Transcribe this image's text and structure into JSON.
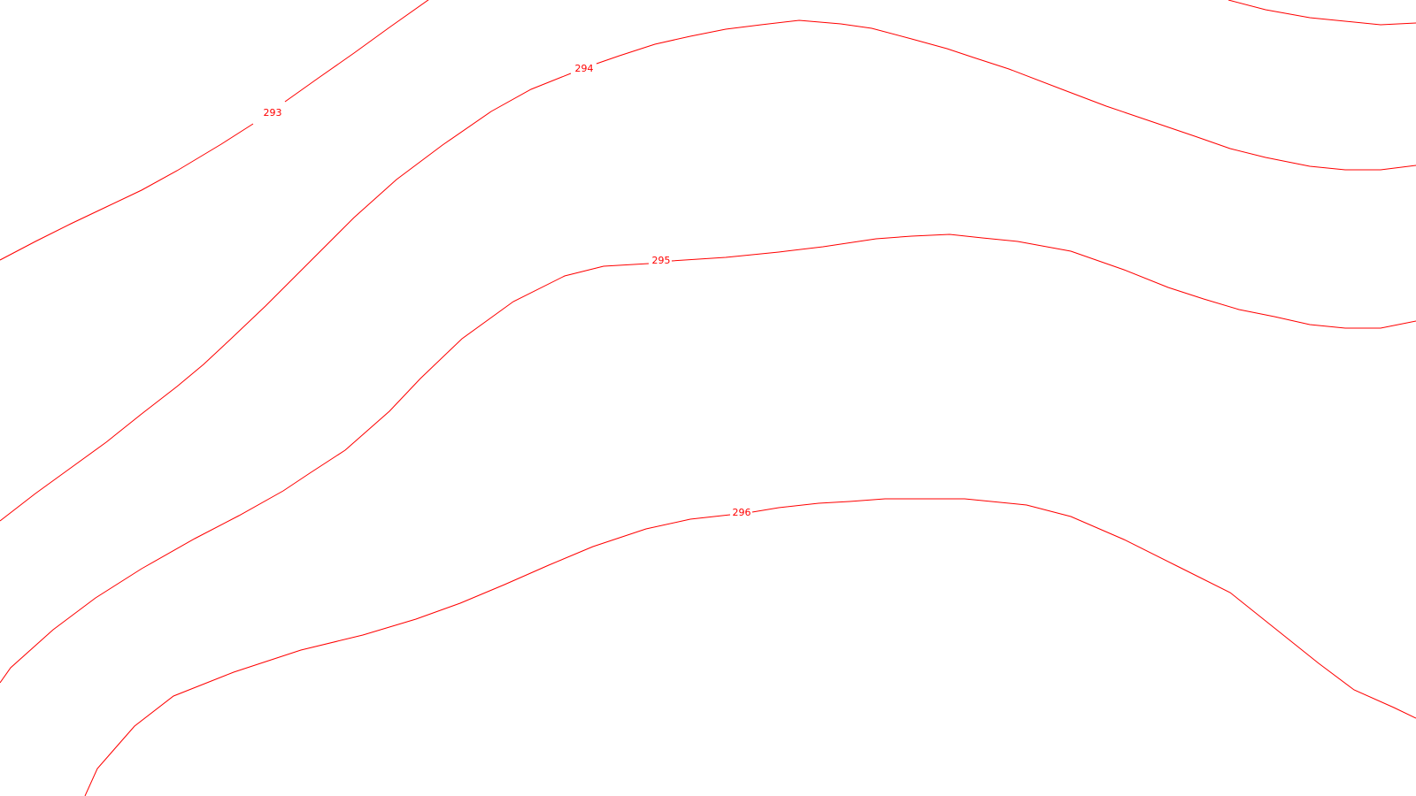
{
  "map": {
    "type": "contour-map",
    "line_color": "#ff0000",
    "background_color": "#ffffff",
    "contours": [
      {
        "id": "contour-293",
        "label": "293"
      },
      {
        "id": "contour-294",
        "label": "294"
      },
      {
        "id": "contour-295",
        "label": "295"
      },
      {
        "id": "contour-296",
        "label": "296"
      },
      {
        "id": "contour-top-right",
        "label": ""
      }
    ]
  }
}
